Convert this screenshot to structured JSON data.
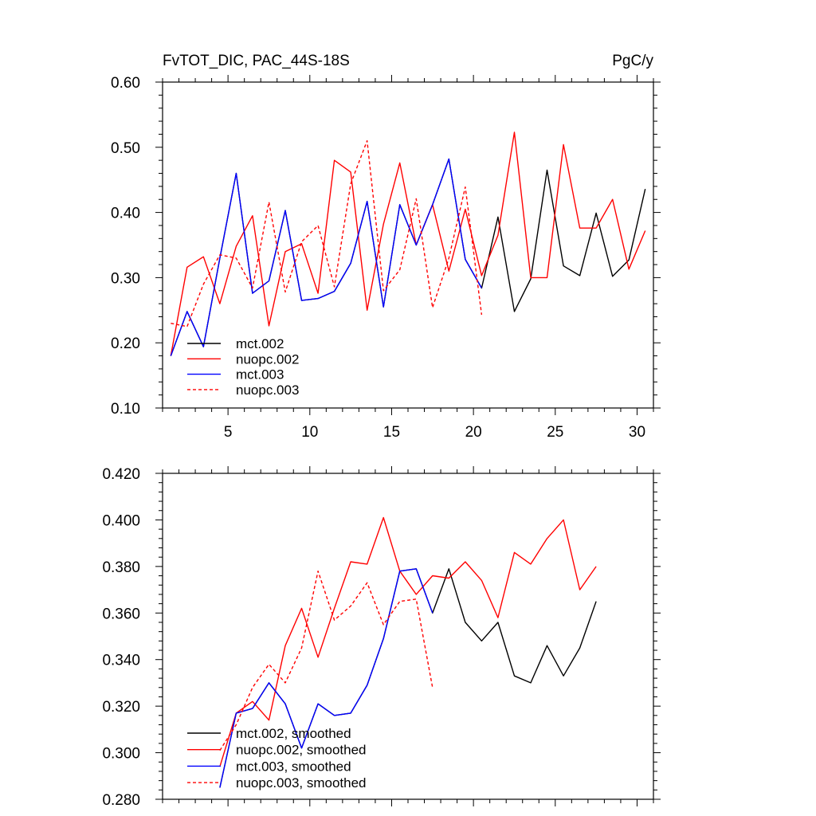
{
  "chart_data": [
    {
      "type": "line",
      "title": "FvTOT_DIC, PAC_44S-18S",
      "units": "PgC/y",
      "xlabel": "",
      "ylabel": "",
      "xlim": [
        1,
        31
      ],
      "ylim": [
        0.1,
        0.6
      ],
      "xticks": [
        5,
        10,
        15,
        20,
        25,
        30
      ],
      "xtick_labels": [
        "5",
        "10",
        "15",
        "20",
        "25",
        "30"
      ],
      "yticks": [
        0.1,
        0.2,
        0.3,
        0.4,
        0.5,
        0.6
      ],
      "ytick_labels": [
        "0.10",
        "0.20",
        "0.30",
        "0.40",
        "0.50",
        "0.60"
      ],
      "legend_position": "bottom-left",
      "series": [
        {
          "name": "mct.002",
          "color": "#000000",
          "dash": "solid",
          "x": [
            1.5,
            2.5,
            3.5,
            4.5,
            5.5,
            6.5,
            7.5,
            8.5,
            9.5,
            10.5,
            11.5,
            12.5,
            13.5,
            14.5,
            15.5,
            16.5,
            17.5,
            18.5,
            19.5,
            20.5,
            21.5,
            22.5,
            23.5,
            24.5,
            25.5,
            26.5,
            27.5,
            28.5,
            29.5,
            30.5
          ],
          "values": [
            0.18,
            0.248,
            0.194,
            0.33,
            0.46,
            0.276,
            0.295,
            0.403,
            0.265,
            0.268,
            0.279,
            0.322,
            0.417,
            0.255,
            0.412,
            0.35,
            0.412,
            0.482,
            0.328,
            0.284,
            0.393,
            0.248,
            0.298,
            0.465,
            0.318,
            0.303,
            0.399,
            0.302,
            0.327,
            0.436
          ]
        },
        {
          "name": "nuopc.002",
          "color": "#ff0000",
          "dash": "solid",
          "x": [
            1.5,
            2.5,
            3.5,
            4.5,
            5.5,
            6.5,
            7.5,
            8.5,
            9.5,
            10.5,
            11.5,
            12.5,
            13.5,
            14.5,
            15.5,
            16.5,
            17.5,
            18.5,
            19.5,
            20.5,
            21.5,
            22.5,
            23.5,
            24.5,
            25.5,
            26.5,
            27.5,
            28.5,
            29.5,
            30.5
          ],
          "values": [
            0.18,
            0.316,
            0.332,
            0.26,
            0.348,
            0.395,
            0.226,
            0.34,
            0.352,
            0.276,
            0.48,
            0.462,
            0.25,
            0.382,
            0.476,
            0.35,
            0.412,
            0.31,
            0.405,
            0.303,
            0.365,
            0.523,
            0.3,
            0.3,
            0.504,
            0.376,
            0.376,
            0.42,
            0.313,
            0.372
          ]
        },
        {
          "name": "mct.003",
          "color": "#0000ff",
          "dash": "solid",
          "x": [
            1.5,
            2.5,
            3.5,
            4.5,
            5.5,
            6.5,
            7.5,
            8.5,
            9.5,
            10.5,
            11.5,
            12.5,
            13.5,
            14.5,
            15.5,
            16.5,
            17.5,
            18.5,
            19.5,
            20.5
          ],
          "values": [
            0.18,
            0.248,
            0.194,
            0.33,
            0.46,
            0.276,
            0.295,
            0.403,
            0.265,
            0.268,
            0.279,
            0.322,
            0.417,
            0.255,
            0.412,
            0.35,
            0.412,
            0.482,
            0.328,
            0.284
          ]
        },
        {
          "name": "nuopc.003",
          "color": "#ff0000",
          "dash": "dashed",
          "x": [
            1.5,
            2.5,
            3.5,
            4.5,
            5.5,
            6.5,
            7.5,
            8.5,
            9.5,
            10.5,
            11.5,
            12.5,
            13.5,
            14.5,
            15.5,
            16.5,
            17.5,
            18.5,
            19.5,
            20.5
          ],
          "values": [
            0.23,
            0.225,
            0.29,
            0.335,
            0.33,
            0.284,
            0.416,
            0.278,
            0.355,
            0.38,
            0.286,
            0.444,
            0.51,
            0.28,
            0.312,
            0.421,
            0.254,
            0.33,
            0.439,
            0.243
          ]
        }
      ]
    },
    {
      "type": "line",
      "title": "",
      "xlabel": "",
      "ylabel": "",
      "xlim": [
        1,
        31
      ],
      "ylim": [
        0.28,
        0.42
      ],
      "xticks": [
        5,
        10,
        15,
        20,
        25,
        30
      ],
      "xtick_labels": [],
      "yticks": [
        0.28,
        0.3,
        0.32,
        0.34,
        0.36,
        0.38,
        0.4,
        0.42
      ],
      "ytick_labels": [
        "0.280",
        "0.300",
        "0.320",
        "0.340",
        "0.360",
        "0.380",
        "0.400",
        "0.420"
      ],
      "legend_position": "bottom-left",
      "series": [
        {
          "name": "mct.002, smoothed",
          "color": "#000000",
          "dash": "solid",
          "x": [
            4.5,
            5.5,
            6.5,
            7.5,
            8.5,
            9.5,
            10.5,
            11.5,
            12.5,
            13.5,
            14.5,
            15.5,
            16.5,
            17.5,
            18.5,
            19.5,
            20.5,
            21.5,
            22.5,
            23.5,
            24.5,
            25.5,
            26.5,
            27.5
          ],
          "values": [
            0.285,
            0.317,
            0.319,
            0.33,
            0.321,
            0.302,
            0.321,
            0.316,
            0.317,
            0.329,
            0.349,
            0.378,
            0.379,
            0.36,
            0.379,
            0.356,
            0.348,
            0.356,
            0.333,
            0.33,
            0.346,
            0.333,
            0.345,
            0.365
          ]
        },
        {
          "name": "nuopc.002, smoothed",
          "color": "#ff0000",
          "dash": "solid",
          "x": [
            4.5,
            5.5,
            6.5,
            7.5,
            8.5,
            9.5,
            10.5,
            11.5,
            12.5,
            13.5,
            14.5,
            15.5,
            16.5,
            17.5,
            18.5,
            19.5,
            20.5,
            21.5,
            22.5,
            23.5,
            24.5,
            25.5,
            26.5,
            27.5
          ],
          "values": [
            0.294,
            0.317,
            0.322,
            0.314,
            0.346,
            0.362,
            0.341,
            0.362,
            0.382,
            0.381,
            0.401,
            0.378,
            0.368,
            0.376,
            0.375,
            0.382,
            0.374,
            0.358,
            0.386,
            0.381,
            0.392,
            0.4,
            0.37,
            0.38
          ]
        },
        {
          "name": "mct.003, smoothed",
          "color": "#0000ff",
          "dash": "solid",
          "x": [
            4.5,
            5.5,
            6.5,
            7.5,
            8.5,
            9.5,
            10.5,
            11.5,
            12.5,
            13.5,
            14.5,
            15.5,
            16.5,
            17.5
          ],
          "values": [
            0.285,
            0.317,
            0.319,
            0.33,
            0.321,
            0.302,
            0.321,
            0.316,
            0.317,
            0.329,
            0.349,
            0.378,
            0.379,
            0.36
          ]
        },
        {
          "name": "nuopc.003, smoothed",
          "color": "#ff0000",
          "dash": "dashed",
          "x": [
            4.5,
            5.5,
            6.5,
            7.5,
            8.5,
            9.5,
            10.5,
            11.5,
            12.5,
            13.5,
            14.5,
            15.5,
            16.5,
            17.5
          ],
          "values": [
            0.301,
            0.312,
            0.328,
            0.338,
            0.33,
            0.345,
            0.378,
            0.357,
            0.363,
            0.373,
            0.355,
            0.365,
            0.366,
            0.328
          ]
        }
      ]
    }
  ]
}
